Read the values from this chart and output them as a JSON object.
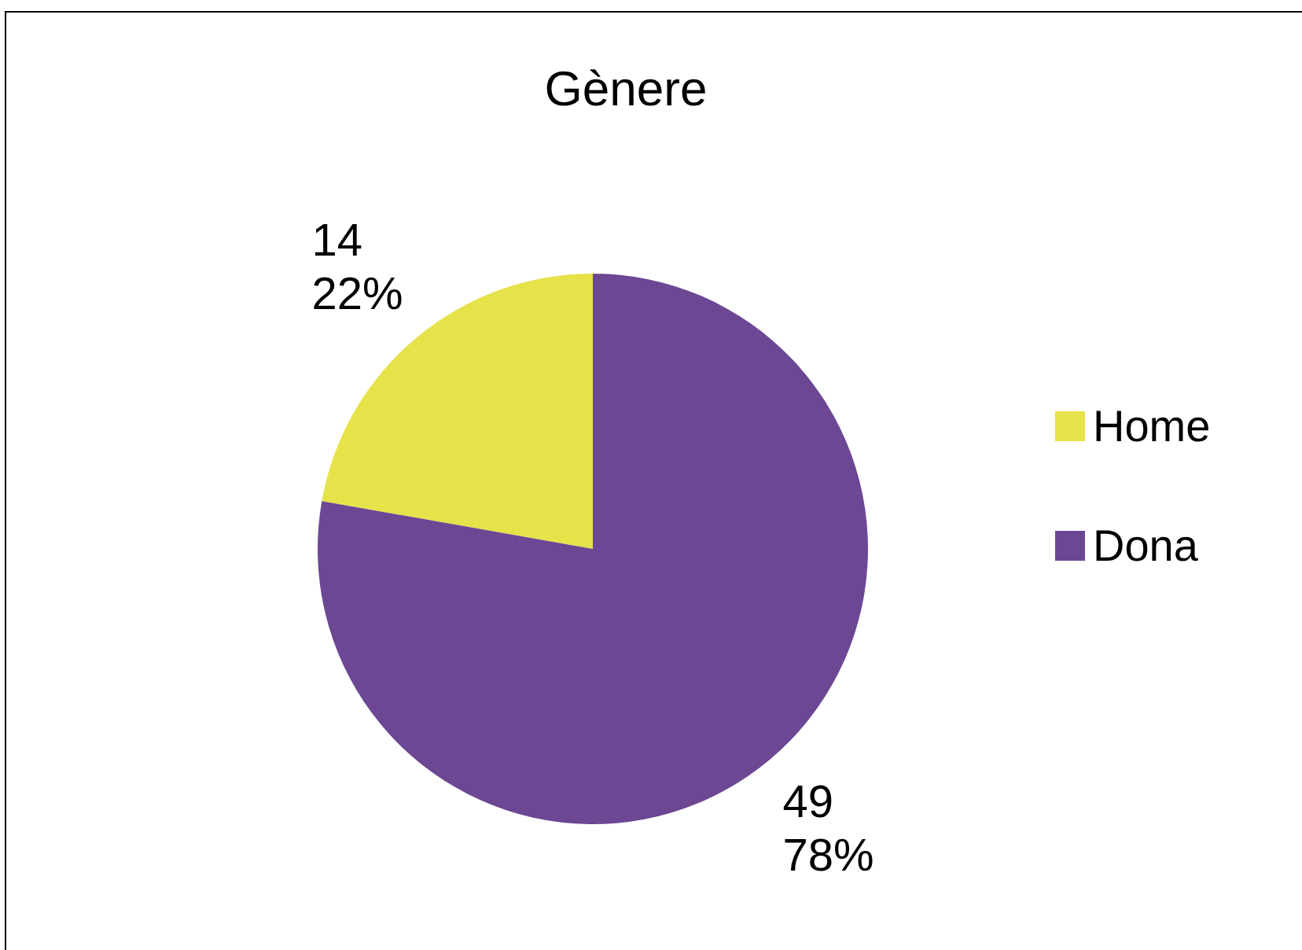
{
  "chart_data": {
    "type": "pie",
    "title": "Gènere",
    "categories": [
      "Home",
      "Dona"
    ],
    "values": [
      14,
      49
    ],
    "colors": [
      "#e6e24a",
      "#6c4794"
    ],
    "value_labels": [
      "14\n22%",
      "49\n78%"
    ],
    "legend": "right"
  }
}
